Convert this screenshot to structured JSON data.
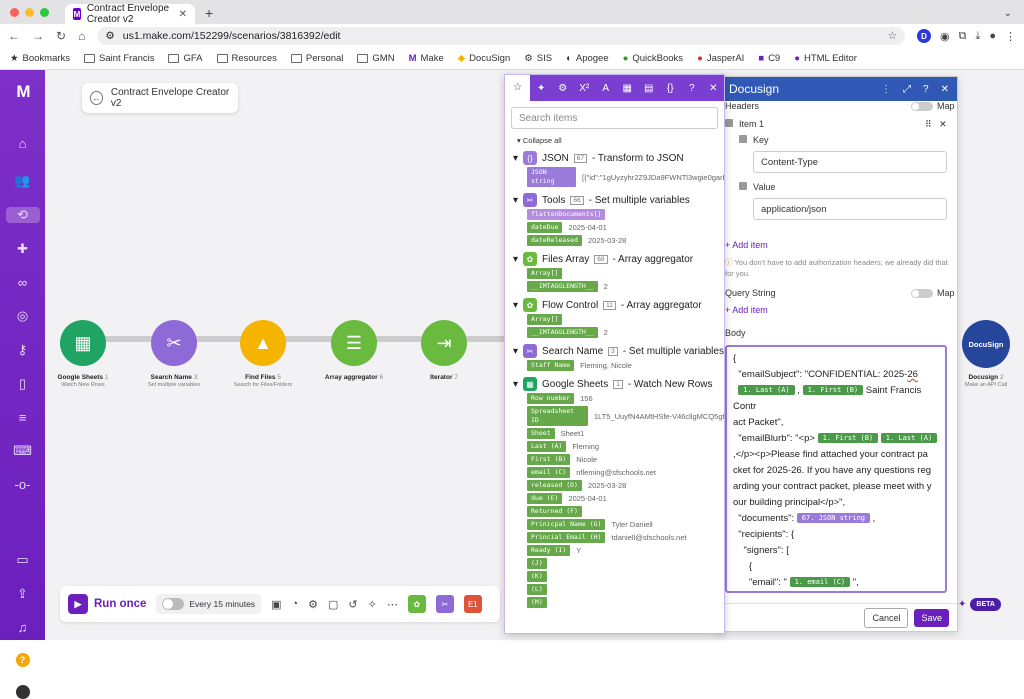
{
  "browser": {
    "tab_title": "Contract Envelope Creator v2",
    "url": "us1.make.com/152299/scenarios/3816392/edit"
  },
  "bookmarks": [
    "Bookmarks",
    "Saint Francis",
    "GFA",
    "Resources",
    "Personal",
    "GMN",
    "Make",
    "DocuSign",
    "SIS",
    "Apogee",
    "QuickBooks",
    "JasperAI",
    "C9",
    "HTML Editor"
  ],
  "scenario": {
    "title": "Contract Envelope Creator v2"
  },
  "modules": [
    {
      "name": "Google Sheets",
      "badge": "1",
      "sub": "Watch New Rows",
      "color": "#1fa463",
      "icon": "sheets-icon"
    },
    {
      "name": "Search Name",
      "badge": "3",
      "sub": "Set multiple variables",
      "color": "#8e6ad6",
      "icon": "tools-icon"
    },
    {
      "name": "Find Files",
      "badge": "5",
      "sub": "Search for Files/Folders",
      "color": "#f4b400",
      "icon": "drive-icon"
    },
    {
      "name": "Array aggregator",
      "badge": "6",
      "sub": "",
      "color": "#6aba3f",
      "icon": "aggregator-icon"
    },
    {
      "name": "Iterator",
      "badge": "7",
      "sub": "",
      "color": "#6aba3f",
      "icon": "iterator-icon"
    }
  ],
  "docusign_module": {
    "name": "Docusign",
    "badge": "2",
    "sub": "Make an API Call",
    "label": "DocuSign"
  },
  "toolbar": {
    "run_once": "Run once",
    "schedule": "Every 15 minutes",
    "beta": "BETA"
  },
  "map_panel": {
    "search_placeholder": "Search items",
    "collapse_all": "Collapse all",
    "groups": [
      {
        "title": "JSON",
        "badge": "67",
        "desc": "- Transform to JSON",
        "color": "#9a7bd9",
        "items": [
          {
            "k": "JSON string",
            "v": "[{\"id\":\"1gUyzyhr2Z9JDa9FWNTl3wgie0garL8"
          }
        ]
      },
      {
        "title": "Tools",
        "badge": "66",
        "desc": "- Set multiple variables",
        "color": "#8e6ad6",
        "items": [
          {
            "k": "flattenDocuments[]",
            "v": ""
          },
          {
            "k": "dateDue",
            "v": "2025-04-01"
          },
          {
            "k": "dateReleased",
            "v": "2025-03-28"
          }
        ]
      },
      {
        "title": "Files Array",
        "badge": "68",
        "desc": "- Array aggregator",
        "color": "#6aba3f",
        "items": [
          {
            "k": "Array[]",
            "v": ""
          },
          {
            "k": "__IMTAGGLENGTH__",
            "v": "2"
          }
        ]
      },
      {
        "title": "Flow Control",
        "badge": "11",
        "desc": "- Array aggregator",
        "color": "#6aba3f",
        "items": [
          {
            "k": "Array[]",
            "v": ""
          },
          {
            "k": "__IMTAGGLENGTH__",
            "v": "2"
          }
        ]
      },
      {
        "title": "Search Name",
        "badge": "3",
        "desc": "- Set multiple variables",
        "color": "#8e6ad6",
        "items": [
          {
            "k": "Staff Name",
            "v": "Fleming, Nicole"
          }
        ]
      },
      {
        "title": "Google Sheets",
        "badge": "1",
        "desc": "- Watch New Rows",
        "color": "#1fa463",
        "items": [
          {
            "k": "Row number",
            "v": "156"
          },
          {
            "k": "Spreadsheet ID",
            "v": "1LT5_UuyfN4AMtHSfe-V46cllgMCQ5gf6"
          },
          {
            "k": "Sheet",
            "v": "Sheet1"
          },
          {
            "k": "Last (A)",
            "v": "Fleming"
          },
          {
            "k": "First (B)",
            "v": "Nicole"
          },
          {
            "k": "email (C)",
            "v": "nfleming@sfschools.net"
          },
          {
            "k": "released (D)",
            "v": "2025-03-28"
          },
          {
            "k": "due (E)",
            "v": "2025-04-01"
          },
          {
            "k": "Returned (F)",
            "v": ""
          },
          {
            "k": "Prinicpal Name (G)",
            "v": "Tyler Daniell"
          },
          {
            "k": "Princial Email (H)",
            "v": "tdaniell@sfschools.net"
          },
          {
            "k": "Ready (I)",
            "v": "Y"
          },
          {
            "k": "(J)",
            "v": ""
          },
          {
            "k": "(K)",
            "v": ""
          },
          {
            "k": "(L)",
            "v": ""
          },
          {
            "k": "(M)",
            "v": ""
          }
        ]
      }
    ]
  },
  "config": {
    "title": "Docusign",
    "headers_label": "Headers",
    "map_label": "Map",
    "item_label": "Item 1",
    "key_label": "Key",
    "key_value": "Content-Type",
    "value_label": "Value",
    "value_value": "application/json",
    "add_item": "Add item",
    "auth_note": "You don't have to add authorization headers; we already did that for you.",
    "query_label": "Query String",
    "body_label": "Body",
    "cancel": "Cancel",
    "save": "Save"
  }
}
